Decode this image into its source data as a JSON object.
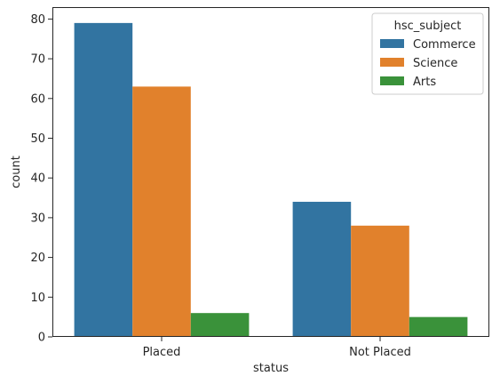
{
  "chart_data": {
    "type": "bar",
    "xlabel": "status",
    "ylabel": "count",
    "categories": [
      "Placed",
      "Not Placed"
    ],
    "ylim": [
      0,
      83
    ],
    "yticks": [
      0,
      10,
      20,
      30,
      40,
      50,
      60,
      70,
      80
    ],
    "grid": false,
    "legend": {
      "title": "hsc_subject",
      "placement": "top-right"
    },
    "series": [
      {
        "name": "Commerce",
        "color": "#3274a1",
        "values": [
          79,
          34
        ]
      },
      {
        "name": "Science",
        "color": "#e1812c",
        "values": [
          63,
          28
        ]
      },
      {
        "name": "Arts",
        "color": "#3a923a",
        "values": [
          6,
          5
        ]
      }
    ]
  }
}
